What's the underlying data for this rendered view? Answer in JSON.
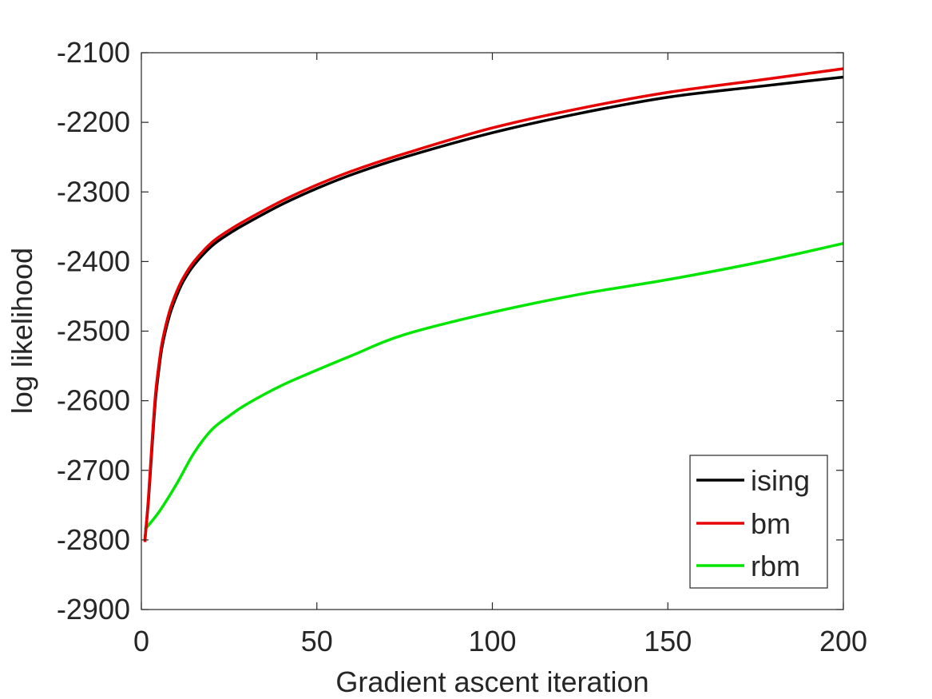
{
  "chart_data": {
    "type": "line",
    "title": "",
    "xlabel": "Gradient ascent iteration",
    "ylabel": "log likelihood",
    "xlim": [
      0,
      200
    ],
    "ylim": [
      -2900,
      -2100
    ],
    "xticks": [
      0,
      50,
      100,
      150,
      200
    ],
    "xtick_labels": [
      "0",
      "50",
      "100",
      "150",
      "200"
    ],
    "yticks": [
      -2100,
      -2200,
      -2300,
      -2400,
      -2500,
      -2600,
      -2700,
      -2800,
      -2900
    ],
    "ytick_labels": [
      "-2100",
      "-2200",
      "-2300",
      "-2400",
      "-2500",
      "-2600",
      "-2700",
      "-2800",
      "-2900"
    ],
    "grid": false,
    "box": true,
    "legend": {
      "position": "bottom-right"
    },
    "series": [
      {
        "name": "ising",
        "color": "#000000",
        "x": [
          1,
          2,
          3,
          4,
          5,
          6,
          8,
          10,
          12,
          15,
          20,
          25,
          30,
          40,
          50,
          60,
          75,
          100,
          125,
          150,
          175,
          200
        ],
        "y": [
          -2800,
          -2745,
          -2670,
          -2600,
          -2555,
          -2520,
          -2478,
          -2450,
          -2428,
          -2405,
          -2378,
          -2360,
          -2345,
          -2318,
          -2295,
          -2275,
          -2250,
          -2215,
          -2187,
          -2164,
          -2149,
          -2135
        ]
      },
      {
        "name": "bm",
        "color": "#e60000",
        "x": [
          1,
          2,
          3,
          4,
          5,
          6,
          8,
          10,
          12,
          15,
          20,
          25,
          30,
          40,
          50,
          60,
          75,
          100,
          125,
          150,
          175,
          200
        ],
        "y": [
          -2803,
          -2740,
          -2662,
          -2592,
          -2548,
          -2514,
          -2472,
          -2444,
          -2423,
          -2400,
          -2373,
          -2355,
          -2340,
          -2313,
          -2290,
          -2270,
          -2245,
          -2208,
          -2180,
          -2157,
          -2140,
          -2123
        ]
      },
      {
        "name": "rbm",
        "color": "#00e600",
        "x": [
          1,
          5,
          10,
          15,
          20,
          25,
          30,
          40,
          50,
          60,
          75,
          100,
          125,
          150,
          175,
          200
        ],
        "y": [
          -2785,
          -2760,
          -2720,
          -2675,
          -2642,
          -2622,
          -2605,
          -2578,
          -2556,
          -2535,
          -2505,
          -2473,
          -2447,
          -2426,
          -2402,
          -2374
        ]
      }
    ]
  }
}
